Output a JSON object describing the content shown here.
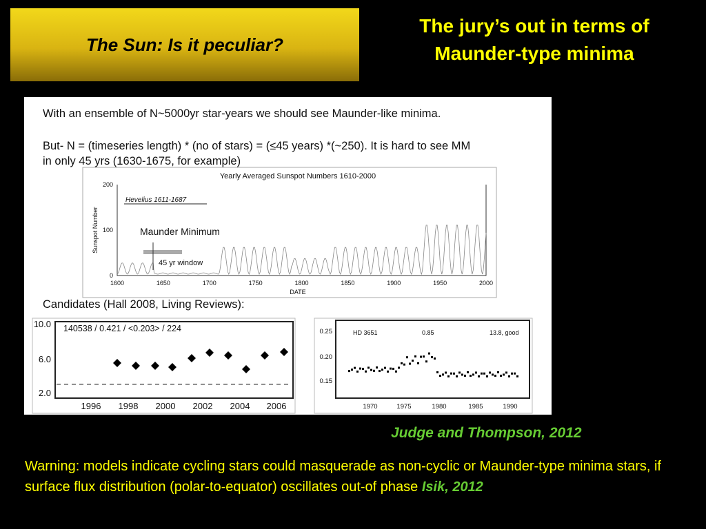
{
  "header": {
    "title": "The Sun: Is it peculiar?",
    "subtitle": [
      "The jury’s out in terms of",
      "Maunder-type  minima"
    ]
  },
  "figure": {
    "text": [
      "With an ensemble of N~5000yr star-years we should see Maunder-like minima.",
      "But- N = (timeseries length) * (no of stars) = (≤45 years) *(~250).  It is hard to see MM",
      "in only 45 yrs (1630-1675, for example)",
      "Candidates (Hall 2008, Living Reviews):"
    ],
    "sunspot_plot": {
      "title": "Yearly Averaged Sunspot Numbers 1610-2000",
      "ylabel": "Sunspot Number",
      "xlabel": "DATE",
      "yticks": [
        "0",
        "100",
        "200"
      ],
      "xticks": [
        "1600",
        "1650",
        "1700",
        "1750",
        "1800",
        "1850",
        "1900",
        "1950",
        "2000"
      ],
      "annotations": [
        "Hevelius 1611-1687",
        "Maunder Minimum",
        "45 yr window"
      ]
    },
    "left_plot": {
      "header": "140538 / 0.421 / <0.203> /  224",
      "yticks": [
        "10.0",
        "6.0",
        "2.0"
      ],
      "xticks": [
        "1996",
        "1998",
        "2000",
        "2002",
        "2004",
        "2006"
      ]
    },
    "right_plot": {
      "labels": [
        "HD 3651",
        "0.85",
        "13.8, good"
      ],
      "yticks": [
        "0.25",
        "0.20",
        "0.15"
      ],
      "xticks": [
        "1970",
        "1975",
        "1980",
        "1985",
        "1990"
      ]
    }
  },
  "credit": "Judge and Thompson, 2012",
  "warning": {
    "text": "Warning:  models indicate cycling stars could masquerade as non-cyclic or Maunder-type minima stars, if surface flux distribution (polar-to-equator) oscillates out-of phase ",
    "citation": "Isik, 2012"
  }
}
